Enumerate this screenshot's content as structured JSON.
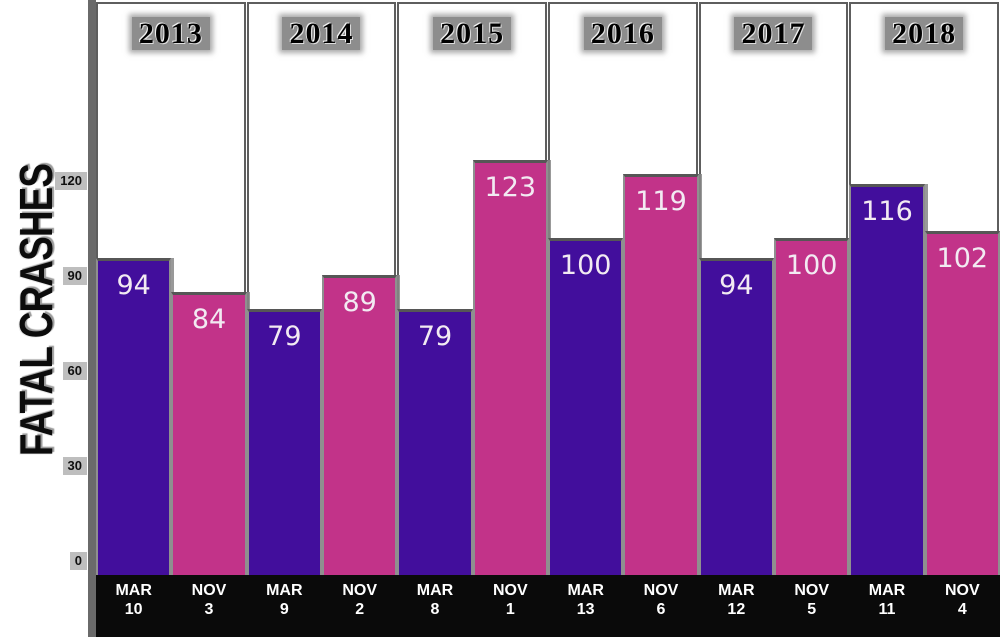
{
  "chart_data": {
    "type": "bar",
    "title": "",
    "ylabel": "FATAL CRASHES",
    "xlabel": "",
    "ylim": [
      0,
      130
    ],
    "y_ticks": [
      120,
      90,
      60,
      30,
      0
    ],
    "grid": false,
    "legend": false,
    "series": [
      {
        "name": "MAR",
        "color": "#420e9c"
      },
      {
        "name": "NOV",
        "color": "#c23389"
      }
    ],
    "groups": [
      {
        "year": "2013",
        "bars": [
          {
            "series": "MAR",
            "x_label_lines": [
              "MAR",
              "10"
            ],
            "value": 94
          },
          {
            "series": "NOV",
            "x_label_lines": [
              "NOV",
              "3"
            ],
            "value": 84
          }
        ]
      },
      {
        "year": "2014",
        "bars": [
          {
            "series": "MAR",
            "x_label_lines": [
              "MAR",
              "9"
            ],
            "value": 79
          },
          {
            "series": "NOV",
            "x_label_lines": [
              "NOV",
              "2"
            ],
            "value": 89
          }
        ]
      },
      {
        "year": "2015",
        "bars": [
          {
            "series": "MAR",
            "x_label_lines": [
              "MAR",
              "8"
            ],
            "value": 79
          },
          {
            "series": "NOV",
            "x_label_lines": [
              "NOV",
              "1"
            ],
            "value": 123
          }
        ]
      },
      {
        "year": "2016",
        "bars": [
          {
            "series": "MAR",
            "x_label_lines": [
              "MAR",
              "13"
            ],
            "value": 100
          },
          {
            "series": "NOV",
            "x_label_lines": [
              "NOV",
              "6"
            ],
            "value": 119
          }
        ]
      },
      {
        "year": "2017",
        "bars": [
          {
            "series": "MAR",
            "x_label_lines": [
              "MAR",
              "12"
            ],
            "value": 94
          },
          {
            "series": "NOV",
            "x_label_lines": [
              "NOV",
              "5"
            ],
            "value": 100
          }
        ]
      },
      {
        "year": "2018",
        "bars": [
          {
            "series": "MAR",
            "x_label_lines": [
              "MAR",
              "11"
            ],
            "value": 116
          },
          {
            "series": "NOV",
            "x_label_lines": [
              "NOV",
              "4"
            ],
            "value": 102
          }
        ]
      }
    ],
    "colors": {
      "mar_purple": "#420e9c",
      "nov_magenta": "#c23389",
      "axis_gray": "#6a6a6a",
      "facet_border": "#5e5e5e",
      "bar_top_edge": "#565656",
      "bottom_strip": "#0a0a0a",
      "value_label": "#f2eaf2",
      "x_label_text": "#ffffff"
    }
  }
}
